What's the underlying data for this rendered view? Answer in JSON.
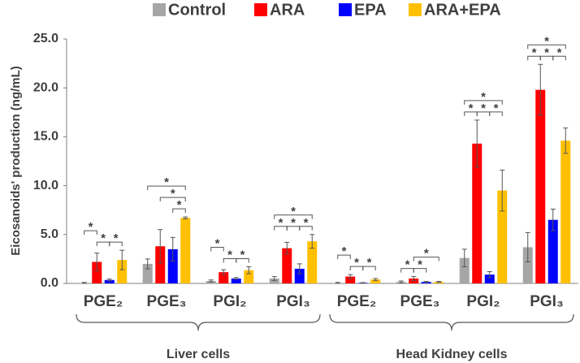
{
  "chart_data": {
    "type": "bar",
    "y_label": "Eicosanoids' production (ng/mL)",
    "categories": [
      "PGE₂",
      "PGE₃",
      "PGI₂",
      "PGI₃",
      "PGE₂",
      "PGE₃",
      "PGI₂",
      "PGI₃"
    ],
    "groups": [
      {
        "name": "Liver cells",
        "count": 4
      },
      {
        "name": "Head Kidney cells",
        "count": 4
      }
    ],
    "series": [
      {
        "name": "Control",
        "color": "#a6a6a6",
        "values": [
          0.05,
          2.0,
          0.25,
          0.5,
          0.05,
          0.15,
          2.6,
          3.7
        ],
        "errors": [
          0.05,
          0.5,
          0.1,
          0.2,
          0.05,
          0.1,
          0.9,
          1.5
        ]
      },
      {
        "name": "ARA",
        "color": "#ff0000",
        "values": [
          2.2,
          3.8,
          1.15,
          3.6,
          0.7,
          0.5,
          14.3,
          19.8
        ],
        "errors": [
          0.9,
          1.7,
          0.25,
          0.6,
          0.2,
          0.2,
          2.4,
          2.6
        ]
      },
      {
        "name": "EPA",
        "color": "#0000ff",
        "values": [
          0.35,
          3.5,
          0.5,
          1.5,
          0.05,
          0.15,
          0.9,
          6.5
        ],
        "errors": [
          0.1,
          1.2,
          0.1,
          0.5,
          0.03,
          0.05,
          0.3,
          1.1
        ]
      },
      {
        "name": "ARA+EPA",
        "color": "#ffc000",
        "values": [
          2.4,
          6.7,
          1.35,
          4.3,
          0.4,
          0.15,
          9.5,
          14.6
        ],
        "errors": [
          1.0,
          0.1,
          0.35,
          0.7,
          0.1,
          0.05,
          2.1,
          1.3
        ]
      }
    ],
    "significance": [
      [
        {
          "text": "*",
          "series": [
            1,
            2
          ]
        },
        {
          "text": "*",
          "series": [
            2,
            3
          ]
        },
        {
          "text": "*",
          "series": [
            0,
            1
          ]
        }
      ],
      [
        {
          "text": "*",
          "series": [
            2,
            3
          ]
        },
        {
          "text": "*",
          "series": [
            1,
            3
          ]
        },
        {
          "text": "*",
          "series": [
            0,
            3
          ]
        }
      ],
      [
        {
          "text": "*",
          "series": [
            1,
            2
          ]
        },
        {
          "text": "*",
          "series": [
            2,
            3
          ]
        },
        {
          "text": "*",
          "series": [
            0,
            1
          ]
        }
      ],
      [
        {
          "text": "*",
          "series": [
            0,
            1
          ]
        },
        {
          "text": "*",
          "series": [
            1,
            2
          ]
        },
        {
          "text": "*",
          "series": [
            2,
            3
          ]
        },
        {
          "text": "*",
          "series": [
            0,
            3
          ]
        }
      ],
      [
        {
          "text": "*",
          "series": [
            1,
            2
          ]
        },
        {
          "text": "*",
          "series": [
            2,
            3
          ]
        },
        {
          "text": "*",
          "series": [
            0,
            1
          ]
        }
      ],
      [
        {
          "text": "*",
          "series": [
            0,
            1
          ]
        },
        {
          "text": "*",
          "series": [
            1,
            2
          ]
        },
        {
          "text": "*",
          "series": [
            1,
            3
          ]
        }
      ],
      [
        {
          "text": "*",
          "series": [
            0,
            1
          ]
        },
        {
          "text": "*",
          "series": [
            1,
            2
          ]
        },
        {
          "text": "*",
          "series": [
            2,
            3
          ]
        },
        {
          "text": "*",
          "series": [
            0,
            3
          ]
        }
      ],
      [
        {
          "text": "*",
          "series": [
            0,
            1
          ]
        },
        {
          "text": "*",
          "series": [
            1,
            2
          ]
        },
        {
          "text": "*",
          "series": [
            2,
            3
          ]
        },
        {
          "text": "*",
          "series": [
            0,
            3
          ]
        }
      ]
    ],
    "ylim": [
      0,
      25
    ],
    "yticks": [
      {
        "value": 0,
        "label": "0.0"
      },
      {
        "value": 5,
        "label": "5.0"
      },
      {
        "value": 10,
        "label": "10.0"
      },
      {
        "value": 15,
        "label": "15.0"
      },
      {
        "value": 20,
        "label": "20.0"
      },
      {
        "value": 25,
        "label": "25.0"
      }
    ],
    "legend": "top"
  }
}
